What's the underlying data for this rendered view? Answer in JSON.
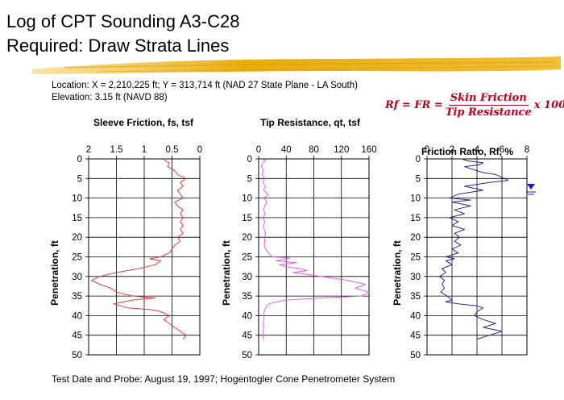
{
  "slide": {
    "title_line1": "Log of CPT Sounding A3-C28",
    "title_line2": "Required: Draw Strata Lines",
    "location": "Location:  X = 2,210,225 ft; Y = 313,714 ft (NAD  27 State Plane  - LA South)",
    "elevation": "Elevation:  3.15 ft (NAVD  88)",
    "footer": "Test Date and Probe:  August 19, 1997; Hogentogler Cone Penetrometer System",
    "formula": {
      "lhs": "Rf = FR =",
      "numerator": "Skin Friction",
      "denominator": "Tip Resistance",
      "rhs": "x 100"
    },
    "colors": {
      "highlight": "#e6a800",
      "formula": "#c0001a",
      "sleeve": "#e83a3a",
      "tip": "#e060e0",
      "ratio": "#2a2a8a",
      "water_table": "#1a1ad0"
    }
  },
  "chart_data": [
    {
      "type": "line",
      "title": "Sleeve Friction, fs, tsf",
      "ylabel": "Penetration, ft",
      "xlim": [
        2,
        0
      ],
      "xticks": [
        "2",
        "1.5",
        "1",
        "0.5",
        "0"
      ],
      "xtick_values": [
        2,
        1.5,
        1,
        0.5,
        0
      ],
      "ylim": [
        0,
        50
      ],
      "yticks": [
        "0",
        "5",
        "10",
        "15",
        "20",
        "25",
        "30",
        "35",
        "40",
        "45",
        "50"
      ],
      "grid": true,
      "series": [
        {
          "color": "#e83a3a",
          "points": [
            [
              0.65,
              0
            ],
            [
              0.62,
              0.5
            ],
            [
              0.55,
              1
            ],
            [
              0.58,
              2
            ],
            [
              0.45,
              3
            ],
            [
              0.4,
              4
            ],
            [
              0.25,
              5
            ],
            [
              0.35,
              6
            ],
            [
              0.3,
              7
            ],
            [
              0.4,
              8
            ],
            [
              0.35,
              9
            ],
            [
              0.3,
              10
            ],
            [
              0.45,
              11
            ],
            [
              0.4,
              12
            ],
            [
              0.3,
              13
            ],
            [
              0.35,
              14
            ],
            [
              0.3,
              15
            ],
            [
              0.35,
              16
            ],
            [
              0.3,
              17
            ],
            [
              0.35,
              18
            ],
            [
              0.3,
              19
            ],
            [
              0.4,
              20
            ],
            [
              0.35,
              21
            ],
            [
              0.45,
              22
            ],
            [
              0.5,
              23
            ],
            [
              0.55,
              24
            ],
            [
              0.7,
              25
            ],
            [
              0.9,
              25.5
            ],
            [
              0.7,
              26
            ],
            [
              0.8,
              27
            ],
            [
              1.1,
              28
            ],
            [
              1.3,
              28.5
            ],
            [
              1.5,
              29
            ],
            [
              1.8,
              30
            ],
            [
              1.95,
              31
            ],
            [
              1.8,
              32
            ],
            [
              1.6,
              33
            ],
            [
              1.5,
              34
            ],
            [
              1.2,
              35
            ],
            [
              0.8,
              35.5
            ],
            [
              1.2,
              36
            ],
            [
              1.55,
              37
            ],
            [
              1.3,
              38
            ],
            [
              0.85,
              38.5
            ],
            [
              0.7,
              39
            ],
            [
              0.55,
              40
            ],
            [
              0.65,
              41
            ],
            [
              0.55,
              42
            ],
            [
              0.45,
              43
            ],
            [
              0.35,
              44
            ],
            [
              0.25,
              45
            ],
            [
              0.3,
              46
            ]
          ]
        }
      ]
    },
    {
      "type": "line",
      "title": "Tip Resistance, qt, tsf",
      "ylabel": "Penetration, ft",
      "xlim": [
        0,
        160
      ],
      "xticks": [
        "0",
        "40",
        "80",
        "120",
        "160"
      ],
      "xtick_values": [
        0,
        40,
        80,
        120,
        160
      ],
      "ylim": [
        0,
        50
      ],
      "yticks": [
        "0",
        "5",
        "10",
        "15",
        "20",
        "25",
        "30",
        "35",
        "40",
        "45",
        "50"
      ],
      "grid": true,
      "series": [
        {
          "color": "#e060e0",
          "points": [
            [
              5,
              0
            ],
            [
              10,
              0.5
            ],
            [
              6,
              1
            ],
            [
              4,
              2
            ],
            [
              7,
              3
            ],
            [
              5,
              4
            ],
            [
              9,
              5
            ],
            [
              6,
              6
            ],
            [
              10,
              7
            ],
            [
              7,
              8
            ],
            [
              14,
              9
            ],
            [
              8,
              10
            ],
            [
              12,
              11
            ],
            [
              9,
              12
            ],
            [
              7,
              13
            ],
            [
              10,
              14
            ],
            [
              6,
              15
            ],
            [
              9,
              16
            ],
            [
              7,
              17
            ],
            [
              8,
              18
            ],
            [
              10,
              19
            ],
            [
              8,
              20
            ],
            [
              9,
              21
            ],
            [
              8,
              22
            ],
            [
              10,
              23
            ],
            [
              14,
              24
            ],
            [
              20,
              25
            ],
            [
              45,
              25.3
            ],
            [
              25,
              26
            ],
            [
              55,
              26.5
            ],
            [
              30,
              27
            ],
            [
              40,
              27.5
            ],
            [
              60,
              28
            ],
            [
              70,
              28.5
            ],
            [
              50,
              29
            ],
            [
              90,
              30
            ],
            [
              130,
              31
            ],
            [
              155,
              32
            ],
            [
              140,
              33
            ],
            [
              160,
              34
            ],
            [
              150,
              35
            ],
            [
              90,
              35.5
            ],
            [
              40,
              36
            ],
            [
              25,
              36.5
            ],
            [
              15,
              37
            ],
            [
              10,
              38
            ],
            [
              8,
              39
            ],
            [
              7,
              40
            ],
            [
              8,
              41
            ],
            [
              6,
              42
            ],
            [
              8,
              43
            ],
            [
              6,
              44
            ],
            [
              7,
              45
            ],
            [
              6,
              46
            ]
          ]
        }
      ]
    },
    {
      "type": "line",
      "title": "Friction Ratio, Rf, %",
      "ylabel": "Penetration, ft",
      "xlim": [
        0,
        8
      ],
      "xticks": [
        "0",
        "2",
        "4",
        "6",
        "8"
      ],
      "xtick_values": [
        0,
        2,
        4,
        6,
        8
      ],
      "ylim": [
        0,
        50
      ],
      "yticks": [
        "0",
        "5",
        "10",
        "15",
        "20",
        "25",
        "30",
        "35",
        "40",
        "45",
        "50"
      ],
      "grid": true,
      "series": [
        {
          "color": "#2a2a8a",
          "points": [
            [
              2.8,
              0
            ],
            [
              3.2,
              0.5
            ],
            [
              4.5,
              1
            ],
            [
              4.2,
              1.5
            ],
            [
              3,
              2
            ],
            [
              4,
              3
            ],
            [
              4.5,
              3.5
            ],
            [
              5.5,
              4
            ],
            [
              6.2,
              5
            ],
            [
              6.5,
              5.5
            ],
            [
              5,
              6
            ],
            [
              4,
              6.5
            ],
            [
              3,
              7
            ],
            [
              4.5,
              8
            ],
            [
              2.5,
              9
            ],
            [
              1.8,
              10
            ],
            [
              3.5,
              10.5
            ],
            [
              2,
              11
            ],
            [
              3.5,
              12
            ],
            [
              2.2,
              13
            ],
            [
              3,
              14
            ],
            [
              1.8,
              15
            ],
            [
              2.5,
              16
            ],
            [
              2,
              17
            ],
            [
              3,
              18
            ],
            [
              2.2,
              19
            ],
            [
              2.6,
              20
            ],
            [
              2.2,
              21
            ],
            [
              2.7,
              22
            ],
            [
              2,
              23
            ],
            [
              2.5,
              24
            ],
            [
              1.5,
              25
            ],
            [
              2.2,
              25.5
            ],
            [
              1.5,
              26
            ],
            [
              2,
              27
            ],
            [
              1.2,
              28
            ],
            [
              1.5,
              29
            ],
            [
              1,
              30
            ],
            [
              1.4,
              31
            ],
            [
              1.2,
              32
            ],
            [
              1.4,
              33
            ],
            [
              1.1,
              34
            ],
            [
              1.6,
              35
            ],
            [
              2,
              36
            ],
            [
              1.5,
              36.5
            ],
            [
              2.5,
              37
            ],
            [
              4,
              37.5
            ],
            [
              4.5,
              38
            ],
            [
              4,
              39
            ],
            [
              3.8,
              40
            ],
            [
              4.5,
              41
            ],
            [
              5.5,
              42
            ],
            [
              4.5,
              43
            ],
            [
              6,
              44
            ],
            [
              5,
              45
            ],
            [
              4,
              46
            ]
          ]
        }
      ]
    }
  ]
}
